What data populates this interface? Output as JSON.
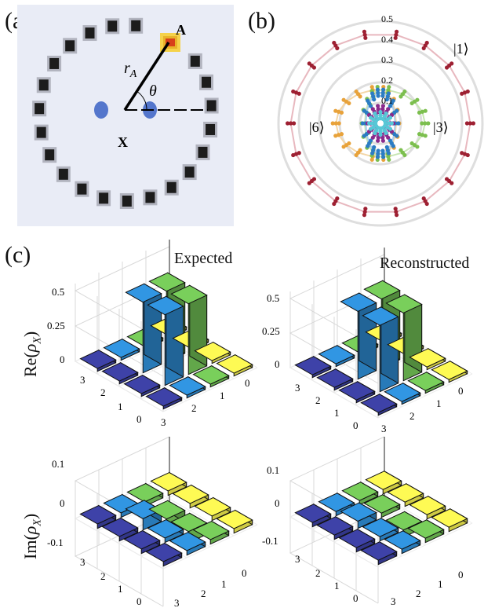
{
  "panel_labels": {
    "a": "(a)",
    "b": "(b)",
    "c": "(c)"
  },
  "panel_a": {
    "point_a_label": "A",
    "point_x_label": "X",
    "radius_label": "r",
    "radius_sub": "A",
    "angle_label": "θ",
    "colors": {
      "background": "#e9ecf6",
      "atom": "#1c1c1c",
      "highlight": "#e8b32a",
      "highlight_core": "#d8401a",
      "center": "#3a62c4"
    }
  },
  "panel_b": {
    "radial_ticks": [
      "0.5",
      "0.4",
      "0.3",
      "0.2",
      "0.1"
    ],
    "state_labels": {
      "s1": "|1⟩",
      "s3": "|3⟩",
      "s6": "|6⟩"
    },
    "series_colors": [
      "#9e2032",
      "#e8a23a",
      "#7cbf4e",
      "#2b7cc4",
      "#8a2a8c",
      "#57c7d6"
    ]
  },
  "panel_c": {
    "titles": {
      "expected": "Expected",
      "reconstructed": "Reconstructed"
    },
    "row_labels": {
      "re_pre": "Re(",
      "im_pre": "Im(",
      "rho": "ρ",
      "sub": "X",
      "post": ")"
    },
    "re_ticks": [
      "0.5",
      "0.25",
      "0"
    ],
    "im_ticks": [
      "0.1",
      "0",
      "-0.1"
    ],
    "axis_ticks_left": [
      "3",
      "2",
      "1",
      "0"
    ],
    "axis_ticks_right": [
      "3",
      "2",
      "1",
      "0"
    ],
    "colors": {
      "c0": "#3b3fa0",
      "c1": "#2f8fd8",
      "c2": "#73c557",
      "c3": "#f2ee50"
    }
  }
}
